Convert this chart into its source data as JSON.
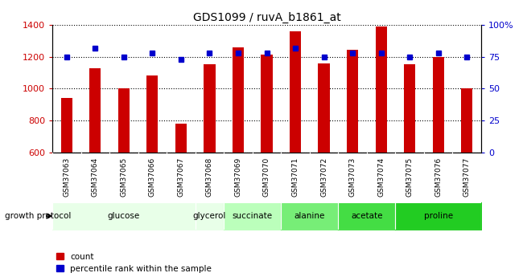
{
  "title": "GDS1099 / ruvA_b1861_at",
  "samples": [
    "GSM37063",
    "GSM37064",
    "GSM37065",
    "GSM37066",
    "GSM37067",
    "GSM37068",
    "GSM37069",
    "GSM37070",
    "GSM37071",
    "GSM37072",
    "GSM37073",
    "GSM37074",
    "GSM37075",
    "GSM37076",
    "GSM37077"
  ],
  "counts": [
    940,
    1130,
    1000,
    1085,
    780,
    1155,
    1260,
    1215,
    1360,
    1160,
    1245,
    1390,
    1155,
    1200,
    1000
  ],
  "percentiles": [
    75,
    82,
    75,
    78,
    73,
    78,
    78,
    78,
    82,
    75,
    78,
    78,
    75,
    78,
    75
  ],
  "ylim_left": [
    600,
    1400
  ],
  "ylim_right": [
    0,
    100
  ],
  "yticks_left": [
    600,
    800,
    1000,
    1200,
    1400
  ],
  "yticks_right": [
    0,
    25,
    50,
    75,
    100
  ],
  "yticklabels_right": [
    "0",
    "25",
    "50",
    "75",
    "100%"
  ],
  "bar_color": "#CC0000",
  "dot_color": "#0000CC",
  "groups": [
    {
      "label": "glucose",
      "start": 0,
      "end": 4,
      "color": "#E8FFE8"
    },
    {
      "label": "glycerol",
      "start": 5,
      "end": 5,
      "color": "#E8FFE8"
    },
    {
      "label": "succinate",
      "start": 6,
      "end": 7,
      "color": "#BBFFBB"
    },
    {
      "label": "alanine",
      "start": 8,
      "end": 9,
      "color": "#77EE77"
    },
    {
      "label": "acetate",
      "start": 10,
      "end": 11,
      "color": "#44DD44"
    },
    {
      "label": "proline",
      "start": 12,
      "end": 14,
      "color": "#22CC22"
    }
  ],
  "tick_label_color": "#CC0000",
  "right_tick_color": "#0000CC",
  "legend_count_label": "count",
  "legend_pct_label": "percentile rank within the sample",
  "growth_protocol_label": "growth protocol",
  "sample_bg_color": "#C0C0C0"
}
